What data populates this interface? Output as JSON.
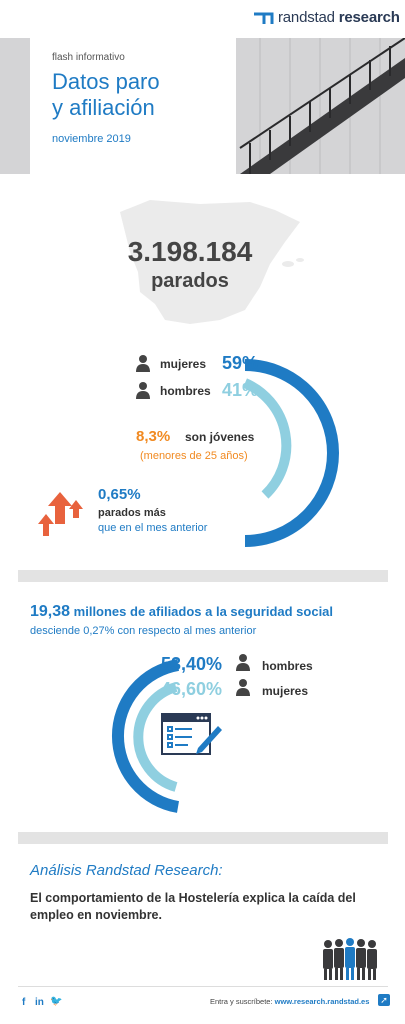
{
  "header": {
    "logo_brand": "randstad",
    "logo_suffix": "research",
    "kicker": "flash informativo",
    "title_line1": "Datos paro",
    "title_line2": "y afiliación",
    "date": "noviembre 2019"
  },
  "paro": {
    "total": "3.198.184",
    "total_label": "parados",
    "women_label": "mujeres",
    "women_pct": "59%",
    "men_label": "hombres",
    "men_pct": "41%",
    "young_pct": "8,3%",
    "young_label": "son jóvenes",
    "young_sub": "(menores de 25 años)",
    "change_pct": "0,65%",
    "change_label": "parados más",
    "change_sub": "que en el mes anterior"
  },
  "afiliacion": {
    "number": "19,38",
    "label": " millones de afiliados a la seguridad social",
    "sub": "desciende 0,27% con respecto al mes anterior",
    "men_pct": "53,40%",
    "men_label": "hombres",
    "women_pct": "46,60%",
    "women_label": "mujeres"
  },
  "analysis": {
    "title": "Análisis Randstad Research:",
    "text": "El comportamiento de la Hostelería explica la caída del empleo en noviembre."
  },
  "footer": {
    "facebook": "f",
    "linkedin": "in",
    "twitter": "🐦",
    "cta": "Entra y suscríbete: ",
    "url": "www.research.randstad.es"
  },
  "colors": {
    "blue": "#1f7bc4",
    "light_blue": "#8fcfe0",
    "orange": "#f18a21",
    "red_arrow": "#e8623d"
  },
  "icons": [
    "randstad-logo-icon",
    "person-icon",
    "up-arrows-icon",
    "form-icon",
    "business-people-icon",
    "facebook-icon",
    "linkedin-icon",
    "twitter-icon",
    "external-arrow-icon"
  ]
}
